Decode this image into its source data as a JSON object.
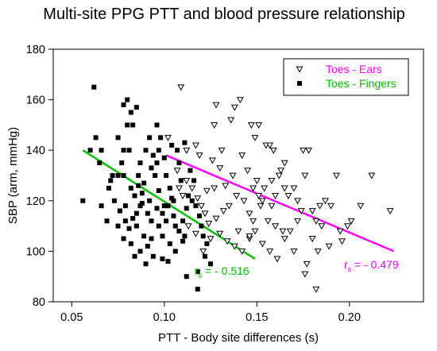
{
  "chart_data": {
    "type": "scatter",
    "title": "Multi-site PPG PTT and blood pressure relationship",
    "xlabel": "PTT - Body site differences (s)",
    "ylabel": "SBP (arm, mmHg)",
    "xlim": [
      0.04,
      0.24
    ],
    "ylim": [
      80,
      180
    ],
    "xticks": [
      0.05,
      0.1,
      0.15,
      0.2
    ],
    "xtick_labels": [
      "0.05",
      "0.10",
      "0.15",
      "0.20"
    ],
    "yticks": [
      80,
      100,
      120,
      140,
      160,
      180
    ],
    "ytick_labels": [
      "80",
      "100",
      "120",
      "140",
      "160",
      "180"
    ],
    "grid": false,
    "legend_position": "top-right",
    "series": [
      {
        "name": "Toes - Ears",
        "marker": "open-triangle-down",
        "color": "#000000",
        "label_color": "#ff00ff",
        "points": [
          [
            0.109,
            165
          ],
          [
            0.102,
            145
          ],
          [
            0.112,
            140
          ],
          [
            0.117,
            142
          ],
          [
            0.128,
            158
          ],
          [
            0.138,
            157
          ],
          [
            0.141,
            160
          ],
          [
            0.147,
            150
          ],
          [
            0.151,
            150
          ],
          [
            0.149,
            145
          ],
          [
            0.127,
            150
          ],
          [
            0.136,
            152
          ],
          [
            0.119,
            138
          ],
          [
            0.126,
            136
          ],
          [
            0.131,
            140
          ],
          [
            0.13,
            133
          ],
          [
            0.142,
            138
          ],
          [
            0.145,
            132
          ],
          [
            0.155,
            142
          ],
          [
            0.157,
            142
          ],
          [
            0.159,
            140
          ],
          [
            0.15,
            128
          ],
          [
            0.154,
            125
          ],
          [
            0.158,
            128
          ],
          [
            0.162,
            130
          ],
          [
            0.165,
            125
          ],
          [
            0.167,
            122
          ],
          [
            0.17,
            125
          ],
          [
            0.175,
            140
          ],
          [
            0.178,
            140
          ],
          [
            0.176,
            130
          ],
          [
            0.172,
            120
          ],
          [
            0.174,
            116
          ],
          [
            0.18,
            116
          ],
          [
            0.182,
            112
          ],
          [
            0.18,
            105
          ],
          [
            0.183,
            100
          ],
          [
            0.177,
            95
          ],
          [
            0.176,
            91
          ],
          [
            0.182,
            85
          ],
          [
            0.17,
            100
          ],
          [
            0.164,
            108
          ],
          [
            0.16,
            110
          ],
          [
            0.156,
            112
          ],
          [
            0.152,
            118
          ],
          [
            0.146,
            115
          ],
          [
            0.143,
            120
          ],
          [
            0.139,
            122
          ],
          [
            0.135,
            118
          ],
          [
            0.132,
            116
          ],
          [
            0.128,
            113
          ],
          [
            0.124,
            111
          ],
          [
            0.122,
            115
          ],
          [
            0.12,
            118
          ],
          [
            0.118,
            121
          ],
          [
            0.115,
            125
          ],
          [
            0.112,
            128
          ],
          [
            0.11,
            122
          ],
          [
            0.108,
            125
          ],
          [
            0.107,
            132
          ],
          [
            0.113,
            110
          ],
          [
            0.117,
            107
          ],
          [
            0.121,
            100
          ],
          [
            0.125,
            105
          ],
          [
            0.13,
            107
          ],
          [
            0.134,
            104
          ],
          [
            0.138,
            102
          ],
          [
            0.142,
            100
          ],
          [
            0.146,
            105
          ],
          [
            0.149,
            108
          ],
          [
            0.153,
            103
          ],
          [
            0.157,
            100
          ],
          [
            0.161,
            97
          ],
          [
            0.165,
            105
          ],
          [
            0.168,
            108
          ],
          [
            0.172,
            112
          ],
          [
            0.185,
            110
          ],
          [
            0.189,
            102
          ],
          [
            0.193,
            130
          ],
          [
            0.195,
            108
          ],
          [
            0.199,
            110
          ],
          [
            0.201,
            112
          ],
          [
            0.212,
            130
          ],
          [
            0.222,
            116
          ],
          [
            0.184,
            118
          ],
          [
            0.16,
            122
          ],
          [
            0.158,
            118
          ],
          [
            0.137,
            130
          ],
          [
            0.133,
            126
          ],
          [
            0.127,
            125
          ],
          [
            0.123,
            124
          ],
          [
            0.148,
            125
          ],
          [
            0.151,
            122
          ],
          [
            0.153,
            120
          ],
          [
            0.163,
            132
          ],
          [
            0.165,
            135
          ],
          [
            0.187,
            120
          ],
          [
            0.19,
            118
          ],
          [
            0.196,
            104
          ],
          [
            0.206,
            118
          ],
          [
            0.148,
            112
          ],
          [
            0.146,
            106
          ],
          [
            0.14,
            108
          ]
        ]
      },
      {
        "name": "Toes - Fingers",
        "marker": "filled-square",
        "color": "#000000",
        "label_color": "#00b400",
        "points": [
          [
            0.056,
            120
          ],
          [
            0.062,
            165
          ],
          [
            0.06,
            140
          ],
          [
            0.063,
            145
          ],
          [
            0.065,
            135
          ],
          [
            0.066,
            140
          ],
          [
            0.072,
            130
          ],
          [
            0.07,
            125
          ],
          [
            0.073,
            120
          ],
          [
            0.075,
            130
          ],
          [
            0.078,
            158
          ],
          [
            0.08,
            160
          ],
          [
            0.082,
            155
          ],
          [
            0.085,
            157
          ],
          [
            0.08,
            150
          ],
          [
            0.083,
            150
          ],
          [
            0.075,
            145
          ],
          [
            0.078,
            140
          ],
          [
            0.081,
            140
          ],
          [
            0.077,
            135
          ],
          [
            0.078,
            130
          ],
          [
            0.086,
            130
          ],
          [
            0.082,
            125
          ],
          [
            0.084,
            122
          ],
          [
            0.079,
            118
          ],
          [
            0.076,
            116
          ],
          [
            0.079,
            112
          ],
          [
            0.075,
            110
          ],
          [
            0.085,
            115
          ],
          [
            0.087,
            118
          ],
          [
            0.088,
            123
          ],
          [
            0.089,
            127
          ],
          [
            0.092,
            120
          ],
          [
            0.091,
            115
          ],
          [
            0.093,
            112
          ],
          [
            0.095,
            130
          ],
          [
            0.096,
            135
          ],
          [
            0.094,
            138
          ],
          [
            0.097,
            140
          ],
          [
            0.098,
            145
          ],
          [
            0.096,
            150
          ],
          [
            0.1,
            137
          ],
          [
            0.101,
            130
          ],
          [
            0.103,
            125
          ],
          [
            0.104,
            121
          ],
          [
            0.102,
            118
          ],
          [
            0.105,
            114
          ],
          [
            0.106,
            110
          ],
          [
            0.108,
            108
          ],
          [
            0.11,
            112
          ],
          [
            0.112,
            117
          ],
          [
            0.113,
            122
          ],
          [
            0.115,
            120
          ],
          [
            0.117,
            118
          ],
          [
            0.119,
            114
          ],
          [
            0.12,
            110
          ],
          [
            0.121,
            106
          ],
          [
            0.123,
            103
          ],
          [
            0.122,
            98
          ],
          [
            0.125,
            95
          ],
          [
            0.118,
            92
          ],
          [
            0.112,
            90
          ],
          [
            0.118,
            85
          ],
          [
            0.11,
            104
          ],
          [
            0.106,
            100
          ],
          [
            0.103,
            103
          ],
          [
            0.099,
            106
          ],
          [
            0.097,
            110
          ],
          [
            0.093,
            105
          ],
          [
            0.089,
            106
          ],
          [
            0.087,
            100
          ],
          [
            0.084,
            98
          ],
          [
            0.082,
            103
          ],
          [
            0.081,
            109
          ],
          [
            0.078,
            105
          ],
          [
            0.09,
            95
          ],
          [
            0.094,
            98
          ],
          [
            0.099,
            97
          ],
          [
            0.105,
            120
          ],
          [
            0.109,
            128
          ],
          [
            0.108,
            135
          ],
          [
            0.107,
            140
          ],
          [
            0.092,
            145
          ],
          [
            0.087,
            135
          ],
          [
            0.09,
            140
          ],
          [
            0.093,
            133
          ],
          [
            0.104,
            142
          ],
          [
            0.111,
            143
          ],
          [
            0.114,
            132
          ],
          [
            0.116,
            128
          ],
          [
            0.066,
            118
          ],
          [
            0.069,
            112
          ],
          [
            0.071,
            128
          ],
          [
            0.083,
            113
          ],
          [
            0.086,
            126
          ],
          [
            0.088,
            119
          ],
          [
            0.097,
            124
          ],
          [
            0.1,
            118
          ],
          [
            0.101,
            112
          ],
          [
            0.111,
            106
          ],
          [
            0.102,
            96
          ],
          [
            0.091,
            102
          ],
          [
            0.096,
            117
          ],
          [
            0.099,
            115
          ],
          [
            0.085,
            110
          ]
        ]
      }
    ],
    "regression_lines": [
      {
        "series": "Toes - Ears",
        "color": "#ff00ff",
        "x": [
          0.101,
          0.224
        ],
        "y": [
          138,
          100
        ]
      },
      {
        "series": "Toes - Fingers",
        "color": "#00c000",
        "x": [
          0.056,
          0.149
        ],
        "y": [
          140,
          97
        ]
      }
    ],
    "annotations": [
      {
        "series": "Toes - Fingers",
        "label": "r",
        "subscript": "s",
        "value": " = - 0.516",
        "color": "#00b400"
      },
      {
        "series": "Toes - Ears",
        "label": "r",
        "subscript": "s",
        "value": " = - 0.479",
        "color": "#ff00ff"
      }
    ]
  }
}
